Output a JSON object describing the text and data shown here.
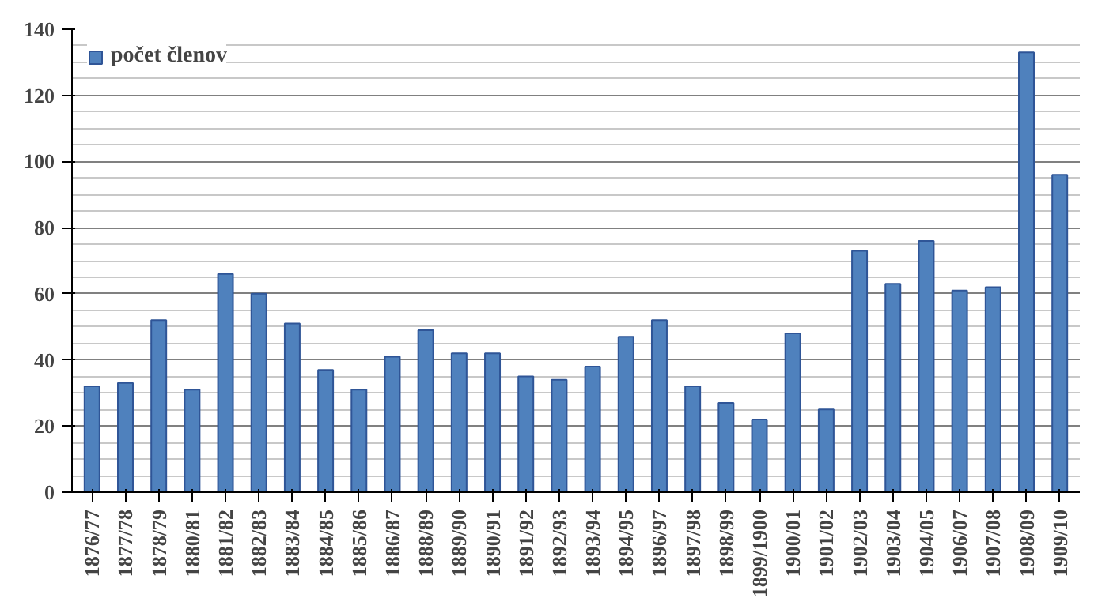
{
  "chart_data": {
    "type": "bar",
    "categories": [
      "1876/77",
      "1877/78",
      "1878/79",
      "1880/81",
      "1881/82",
      "1882/83",
      "1883/84",
      "1884/85",
      "1885/86",
      "1886/87",
      "1888/89",
      "1889/90",
      "1890/91",
      "1891/92",
      "1892/93",
      "1893/94",
      "1894/95",
      "1896/97",
      "1897/98",
      "1898/99",
      "1899/1900",
      "1900/01",
      "1901/02",
      "1902/03",
      "1903/04",
      "1904/05",
      "1906/07",
      "1907/08",
      "1908/09",
      "1909/10"
    ],
    "series": [
      {
        "name": "počet členov",
        "color": "#4f81bd",
        "values": [
          32,
          33,
          52,
          31,
          66,
          60,
          51,
          37,
          31,
          41,
          49,
          42,
          42,
          35,
          34,
          38,
          47,
          52,
          32,
          27,
          22,
          48,
          25,
          73,
          63,
          76,
          61,
          62,
          133,
          96
        ]
      }
    ],
    "ylim": [
      0,
      140
    ],
    "yticks": [
      0,
      20,
      40,
      60,
      80,
      100,
      120,
      140
    ],
    "grid": "y",
    "legend": "top left"
  }
}
